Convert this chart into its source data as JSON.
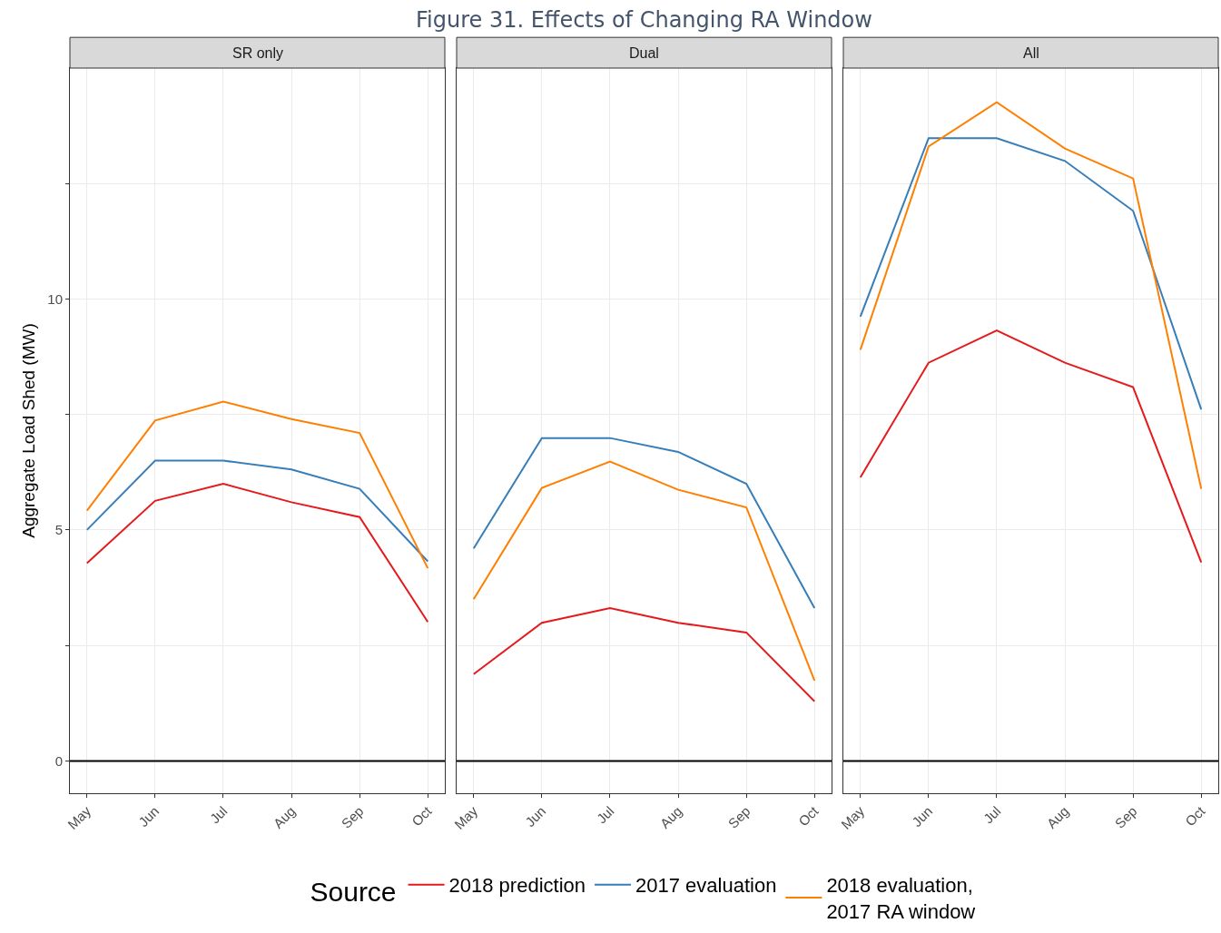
{
  "chart_data": [
    {
      "type": "line",
      "title": "SR only",
      "annotations": [
        "Figure 31. Effects of Changing RA Window"
      ],
      "ylabel": "Aggregate Load Shed (MW)",
      "legend_title": "Source",
      "legend": "bottom",
      "grid": true,
      "categories": [
        "May",
        "Jun",
        "Jul",
        "Aug",
        "Sep",
        "Oct"
      ],
      "ylim": [
        -0.7,
        15
      ],
      "yticks": [
        0,
        {
          "value": 2.5,
          "label": null
        },
        5,
        {
          "value": 7.5,
          "label": null
        },
        10,
        {
          "value": 12.5,
          "label": null
        }
      ],
      "ref_lines": [
        {
          "axis": "y",
          "value": 0,
          "color": "#000000"
        }
      ],
      "series": [
        {
          "name": "2018 prediction",
          "color": "#e41a1c",
          "values": [
            4.28,
            5.63,
            6.0,
            5.6,
            5.28,
            3.01
          ]
        },
        {
          "name": "2017 evaluation",
          "color": "#377eb8",
          "values": [
            5.0,
            6.5,
            6.5,
            6.31,
            5.89,
            4.32
          ]
        },
        {
          "name": "2018 evaluation,\n2017 RA window",
          "color": "#ff7f00",
          "values": [
            5.42,
            7.37,
            7.78,
            7.4,
            7.1,
            4.17
          ]
        }
      ]
    },
    {
      "type": "line",
      "title": "Dual",
      "grid": true,
      "tick_labels": "x",
      "categories": [
        "May",
        "Jun",
        "Jul",
        "Aug",
        "Sep",
        "Oct"
      ],
      "ylim": [
        -0.7,
        15
      ],
      "yticks": [
        0,
        {
          "value": 2.5,
          "label": null
        },
        5,
        {
          "value": 7.5,
          "label": null
        },
        10,
        {
          "value": 12.5,
          "label": null
        }
      ],
      "ref_lines": [
        {
          "axis": "y",
          "value": 0,
          "color": "#000000"
        }
      ],
      "series": [
        {
          "color": "#e41a1c",
          "values": [
            1.88,
            2.99,
            3.31,
            2.99,
            2.78,
            1.29
          ]
        },
        {
          "color": "#377eb8",
          "values": [
            4.6,
            6.99,
            6.99,
            6.69,
            6.0,
            3.31
          ]
        },
        {
          "color": "#ff7f00",
          "values": [
            3.5,
            5.91,
            6.48,
            5.87,
            5.49,
            1.74
          ]
        }
      ]
    },
    {
      "type": "line",
      "title": "All",
      "grid": true,
      "tick_labels": "x",
      "categories": [
        "May",
        "Jun",
        "Jul",
        "Aug",
        "Sep",
        "Oct"
      ],
      "ylim": [
        -0.7,
        15
      ],
      "yticks": [
        0,
        {
          "value": 2.5,
          "label": null
        },
        5,
        {
          "value": 7.5,
          "label": null
        },
        10,
        {
          "value": 12.5,
          "label": null
        }
      ],
      "ref_lines": [
        {
          "axis": "y",
          "value": 0,
          "color": "#000000"
        }
      ],
      "series": [
        {
          "color": "#e41a1c",
          "values": [
            6.14,
            8.62,
            9.32,
            8.62,
            8.09,
            4.3
          ]
        },
        {
          "color": "#377eb8",
          "values": [
            9.62,
            13.48,
            13.48,
            12.99,
            11.91,
            7.61
          ]
        },
        {
          "color": "#ff7f00",
          "values": [
            8.9,
            13.3,
            14.26,
            13.26,
            12.61,
            5.89
          ]
        }
      ]
    }
  ]
}
